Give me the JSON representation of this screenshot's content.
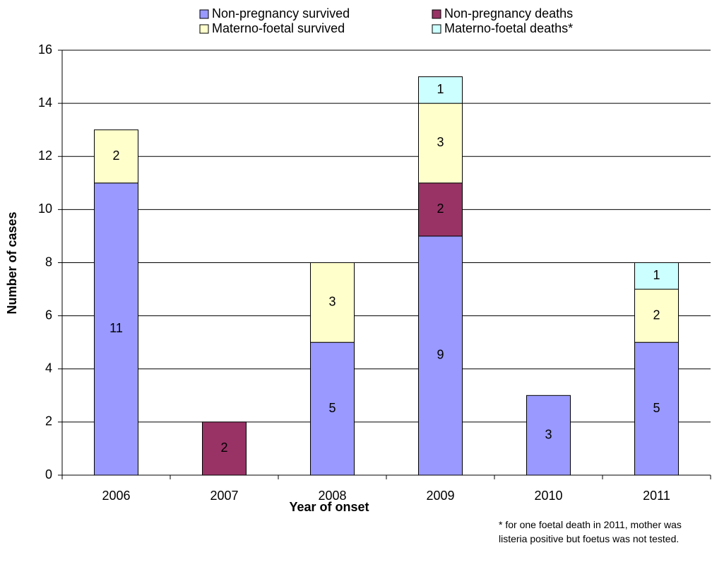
{
  "chart_data": {
    "type": "stacked-bar",
    "x_label": "Year of onset",
    "y_label": "Number of cases",
    "categories": [
      "2006",
      "2007",
      "2008",
      "2009",
      "2010",
      "2011"
    ],
    "series": [
      {
        "name": "Non-pregnancy survived",
        "color": "#9999ff",
        "values": [
          11,
          null,
          5,
          9,
          3,
          5
        ]
      },
      {
        "name": "Non-pregnancy deaths",
        "color": "#993366",
        "values": [
          null,
          2,
          null,
          2,
          null,
          null
        ]
      },
      {
        "name": "Materno-foetal survived",
        "color": "#ffffcc",
        "values": [
          2,
          null,
          3,
          3,
          null,
          2
        ]
      },
      {
        "name": "Materno-foetal deaths*",
        "color": "#ccffff",
        "values": [
          null,
          null,
          null,
          1,
          null,
          1
        ]
      }
    ],
    "ylim": [
      0,
      16
    ],
    "yticks": [
      0,
      2,
      4,
      6,
      8,
      10,
      12,
      14,
      16
    ],
    "grid": true,
    "footnote": "* for one foetal death in 2011, mother was listeria positive but foetus was not tested."
  }
}
